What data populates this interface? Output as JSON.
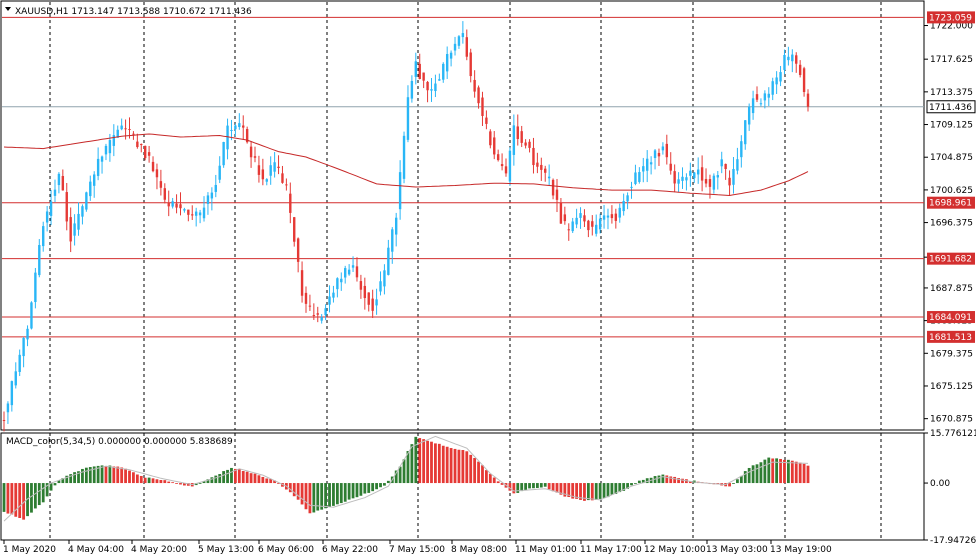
{
  "window": {
    "symbol_header": "XAUUSD,H1  1713.147 1713.588 1710.672 1711.436",
    "menu_arrow_icon": "triangle-down-icon"
  },
  "indicator": {
    "header": "MACD_color(5,34,5) 0.000000 0.000000 5.838689"
  },
  "colors": {
    "bull": "#29b6f6",
    "bear": "#e53935",
    "ma": "#c62828",
    "hline": "#d32f2f",
    "macd_pos": "#2e7d32",
    "macd_neg": "#e53935",
    "signal": "#bdbdbd",
    "grid": "#000000",
    "bid_tag": "#ffffff"
  },
  "chart_data": [
    {
      "type": "candlestick",
      "title": "XAUUSD,H1",
      "ylim": [
        1669.4,
        1724.8
      ],
      "y_ticks": [
        "1722.000",
        "1717.625",
        "1713.375",
        "1709.125",
        "1704.875",
        "1700.625",
        "1696.375",
        "1691.875",
        "1687.875",
        "1683.625",
        "1679.375",
        "1675.125",
        "1670.875"
      ],
      "x_labels": [
        "1 May 2020",
        "4 May 04:00",
        "4 May 20:00",
        "5 May 13:00",
        "6 May 06:00",
        "6 May 22:00",
        "7 May 15:00",
        "8 May 08:00",
        "11 May 01:00",
        "11 May 17:00",
        "12 May 10:00",
        "13 May 03:00",
        "13 May 19:00"
      ],
      "price_levels": [
        {
          "label": "1723.059",
          "value": 1723.059
        },
        {
          "label": "1698.961",
          "value": 1698.961
        },
        {
          "label": "1691.682",
          "value": 1691.682
        },
        {
          "label": "1684.091",
          "value": 1684.091
        },
        {
          "label": "1681.513",
          "value": 1681.513
        }
      ],
      "bid": {
        "label": "1711.436",
        "value": 1711.436
      },
      "ohlc": {
        "open": 1713.147,
        "high": 1713.588,
        "low": 1710.672,
        "close": 1711.436
      },
      "price_path": [
        [
          0,
          1671.2
        ],
        [
          6,
          1683.0
        ],
        [
          10,
          1696.0
        ],
        [
          14,
          1702.5
        ],
        [
          17,
          1694.5
        ],
        [
          20,
          1698.0
        ],
        [
          24,
          1704.5
        ],
        [
          28,
          1707.5
        ],
        [
          31,
          1708.8
        ],
        [
          34,
          1706.5
        ],
        [
          37,
          1704.3
        ],
        [
          41,
          1699.0
        ],
        [
          45,
          1698.2
        ],
        [
          50,
          1697.4
        ],
        [
          54,
          1701.5
        ],
        [
          57,
          1708.6
        ],
        [
          60,
          1709.5
        ],
        [
          63,
          1705.5
        ],
        [
          66,
          1702.0
        ],
        [
          69,
          1703.8
        ],
        [
          72,
          1700.7
        ],
        [
          74,
          1694.2
        ],
        [
          76,
          1687.0
        ],
        [
          78,
          1684.9
        ],
        [
          80,
          1683.7
        ],
        [
          83,
          1687.1
        ],
        [
          86,
          1689.4
        ],
        [
          89,
          1690.3
        ],
        [
          92,
          1687.0
        ],
        [
          94,
          1685.3
        ],
        [
          97,
          1690.1
        ],
        [
          100,
          1697.6
        ],
        [
          103,
          1712.5
        ],
        [
          105,
          1717.2
        ],
        [
          108,
          1713.0
        ],
        [
          111,
          1715.5
        ],
        [
          114,
          1718.8
        ],
        [
          117,
          1720.6
        ],
        [
          119,
          1715.2
        ],
        [
          122,
          1710.5
        ],
        [
          125,
          1705.5
        ],
        [
          128,
          1702.0
        ],
        [
          130,
          1708.5
        ],
        [
          133,
          1706.8
        ],
        [
          136,
          1703.5
        ],
        [
          139,
          1702.0
        ],
        [
          142,
          1697.0
        ],
        [
          144,
          1695.0
        ],
        [
          147,
          1697.2
        ],
        [
          150,
          1695.5
        ],
        [
          153,
          1697.0
        ],
        [
          156,
          1697.0
        ],
        [
          159,
          1700.5
        ],
        [
          162,
          1703.0
        ],
        [
          165,
          1704.5
        ],
        [
          168,
          1706.4
        ],
        [
          171,
          1701.0
        ],
        [
          174,
          1702.3
        ],
        [
          177,
          1703.0
        ],
        [
          180,
          1700.7
        ],
        [
          183,
          1704.6
        ],
        [
          185,
          1700.8
        ],
        [
          188,
          1707.0
        ],
        [
          191,
          1713.0
        ],
        [
          193,
          1711.7
        ],
        [
          196,
          1714.0
        ],
        [
          199,
          1717.4
        ],
        [
          201,
          1718.1
        ],
        [
          203,
          1716.0
        ],
        [
          205,
          1711.4
        ]
      ],
      "ma_path": [
        [
          0,
          1706.2
        ],
        [
          10,
          1706.0
        ],
        [
          20,
          1706.8
        ],
        [
          30,
          1707.6
        ],
        [
          37,
          1707.9
        ],
        [
          45,
          1707.5
        ],
        [
          55,
          1707.7
        ],
        [
          62,
          1707.1
        ],
        [
          70,
          1705.6
        ],
        [
          77,
          1704.9
        ],
        [
          85,
          1703.4
        ],
        [
          95,
          1701.4
        ],
        [
          105,
          1701.0
        ],
        [
          115,
          1701.2
        ],
        [
          125,
          1701.5
        ],
        [
          135,
          1701.4
        ],
        [
          145,
          1700.9
        ],
        [
          155,
          1700.6
        ],
        [
          165,
          1700.6
        ],
        [
          175,
          1700.2
        ],
        [
          185,
          1699.9
        ],
        [
          193,
          1700.6
        ],
        [
          200,
          1701.8
        ],
        [
          205,
          1703.0
        ]
      ]
    },
    {
      "type": "bar",
      "title": "MACD_color(5,34,5)",
      "ylim": [
        -17.947262,
        15.776121
      ],
      "y_ticks": [
        "15.776121",
        "0.00",
        "-17.947262"
      ],
      "macd_path": [
        [
          0,
          -9.0
        ],
        [
          5,
          -11.5
        ],
        [
          10,
          -6.0
        ],
        [
          14,
          1.0
        ],
        [
          20,
          4.4
        ],
        [
          25,
          5.7
        ],
        [
          30,
          4.9
        ],
        [
          36,
          1.8
        ],
        [
          42,
          0.5
        ],
        [
          48,
          -1.2
        ],
        [
          54,
          2.3
        ],
        [
          58,
          4.9
        ],
        [
          63,
          3.2
        ],
        [
          69,
          0.8
        ],
        [
          73,
          -2.8
        ],
        [
          78,
          -9.4
        ],
        [
          82,
          -8.1
        ],
        [
          86,
          -6.2
        ],
        [
          92,
          -3.5
        ],
        [
          97,
          -0.8
        ],
        [
          101,
          5.3
        ],
        [
          105,
          14.7
        ],
        [
          110,
          12.6
        ],
        [
          115,
          10.8
        ],
        [
          118,
          10.1
        ],
        [
          122,
          5.5
        ],
        [
          126,
          0.5
        ],
        [
          130,
          -3.4
        ],
        [
          134,
          -1.8
        ],
        [
          138,
          -1.3
        ],
        [
          142,
          -3.8
        ],
        [
          148,
          -5.6
        ],
        [
          152,
          -5.1
        ],
        [
          158,
          -2.6
        ],
        [
          162,
          0.9
        ],
        [
          168,
          2.6
        ],
        [
          175,
          0.8
        ],
        [
          180,
          -0.2
        ],
        [
          185,
          -1.2
        ],
        [
          190,
          4.8
        ],
        [
          195,
          7.9
        ],
        [
          200,
          7.3
        ],
        [
          205,
          5.6
        ]
      ],
      "signal_path": [
        [
          0,
          -12.0
        ],
        [
          6,
          -5.0
        ],
        [
          12,
          0.0
        ],
        [
          20,
          3.5
        ],
        [
          26,
          5.3
        ],
        [
          32,
          4.2
        ],
        [
          40,
          1.5
        ],
        [
          48,
          -0.5
        ],
        [
          55,
          2.0
        ],
        [
          60,
          4.5
        ],
        [
          66,
          2.5
        ],
        [
          72,
          -1.0
        ],
        [
          78,
          -7.0
        ],
        [
          84,
          -7.6
        ],
        [
          92,
          -4.6
        ],
        [
          98,
          -1.0
        ],
        [
          104,
          11.5
        ],
        [
          110,
          14.7
        ],
        [
          118,
          11.0
        ],
        [
          124,
          3.0
        ],
        [
          130,
          -2.5
        ],
        [
          138,
          -1.8
        ],
        [
          146,
          -4.5
        ],
        [
          152,
          -5.3
        ],
        [
          160,
          -1.0
        ],
        [
          168,
          2.0
        ],
        [
          176,
          0.3
        ],
        [
          184,
          -0.5
        ],
        [
          190,
          3.5
        ],
        [
          196,
          6.6
        ],
        [
          205,
          6.2
        ]
      ]
    }
  ]
}
